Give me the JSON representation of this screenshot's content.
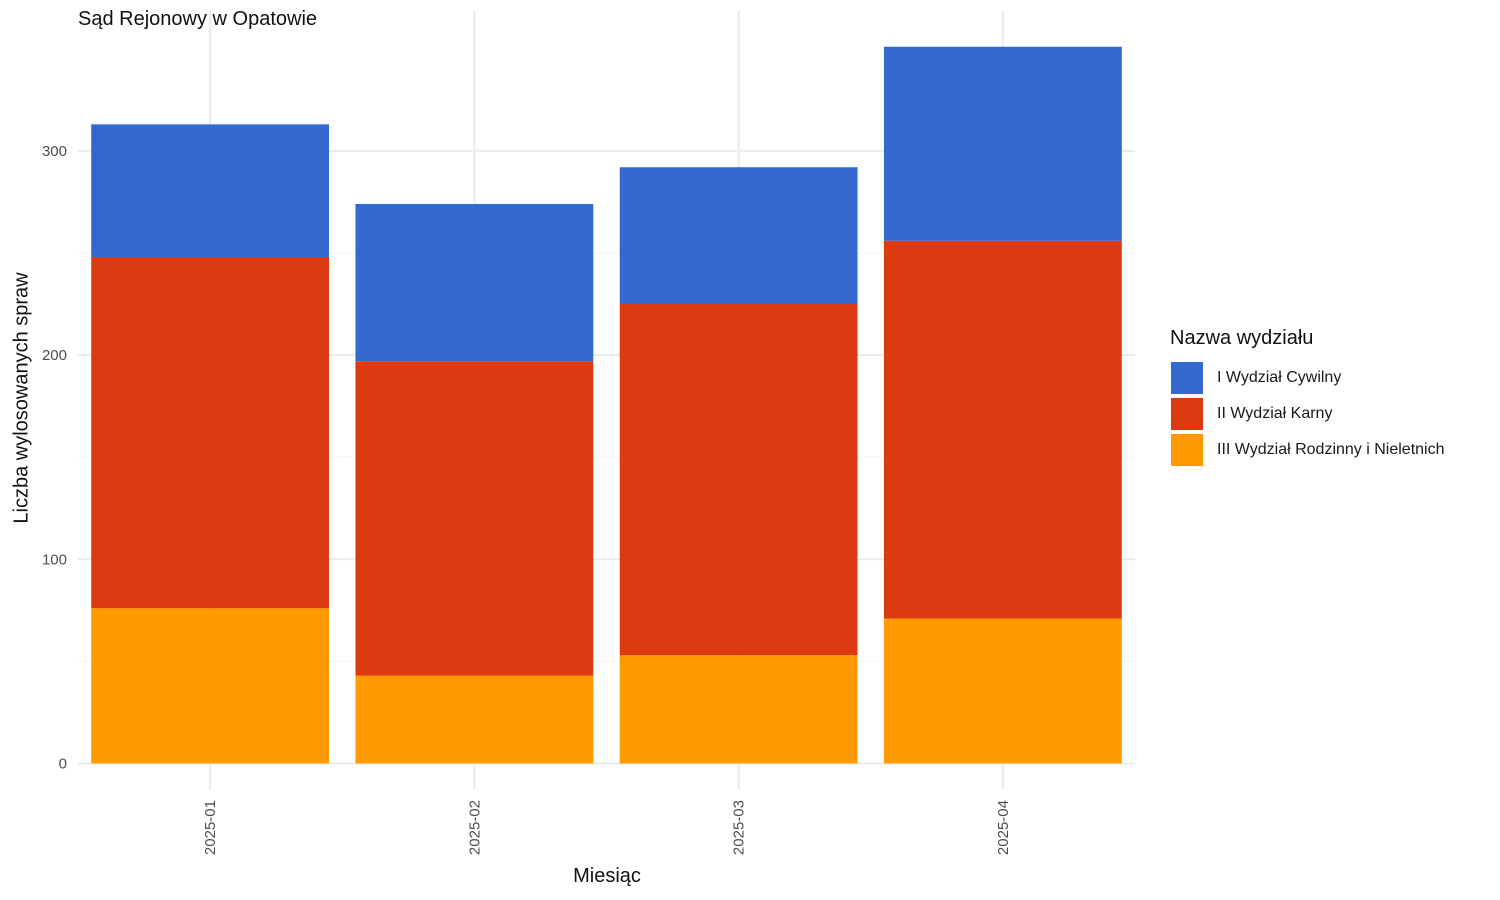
{
  "chart_data": {
    "type": "bar",
    "stacked": true,
    "title": "Sąd Rejonowy w Opatowie",
    "xlabel": "Miesiąc",
    "ylabel": "Liczba wylosowanych spraw",
    "categories": [
      "2025-01",
      "2025-02",
      "2025-03",
      "2025-04"
    ],
    "yticks": [
      0,
      100,
      200,
      300
    ],
    "ylim": [
      -13,
      369
    ],
    "grid": true,
    "legend_title": "Nazwa wydziału",
    "legend_position": "right",
    "series": [
      {
        "name": "III Wydział Rodzinny i Nieletnich",
        "color": "#FF9A00",
        "values": [
          76,
          43,
          53,
          71
        ]
      },
      {
        "name": "II Wydział Karny",
        "color": "#DD3A12",
        "values": [
          172,
          154,
          172,
          185
        ]
      },
      {
        "name": "I Wydział Cywilny",
        "color": "#3369CE",
        "values": [
          65,
          77,
          67,
          95
        ]
      }
    ],
    "legend_order": [
      2,
      1,
      0
    ]
  }
}
